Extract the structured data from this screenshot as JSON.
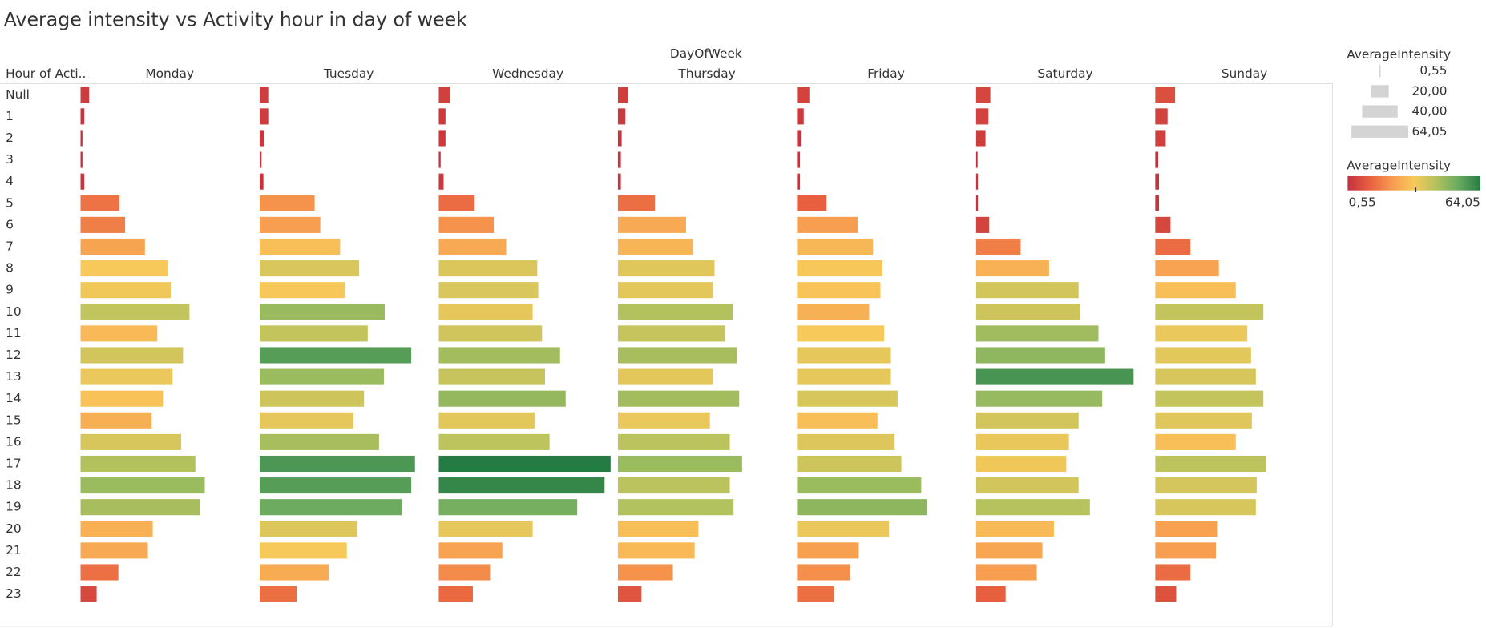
{
  "chart_data": {
    "type": "bar",
    "title": "Average intensity vs Activity hour in day of week",
    "column_header": "DayOfWeek",
    "row_header": "Hour of Acti..",
    "categories": [
      "Null",
      "1",
      "2",
      "3",
      "4",
      "5",
      "6",
      "7",
      "8",
      "9",
      "10",
      "11",
      "12",
      "13",
      "14",
      "15",
      "16",
      "17",
      "18",
      "19",
      "20",
      "21",
      "22",
      "23"
    ],
    "xlim": [
      0,
      65
    ],
    "series": [
      {
        "name": "Monday",
        "values": [
          3.2,
          1.4,
          0.7,
          0.7,
          1.4,
          14.5,
          16.6,
          24.0,
          32.5,
          33.6,
          40.6,
          28.6,
          38.2,
          34.3,
          30.7,
          26.5,
          37.5,
          42.8,
          46.3,
          44.5,
          26.9,
          25.1,
          14.1,
          6.0
        ]
      },
      {
        "name": "Tuesday",
        "values": [
          3.2,
          3.2,
          1.8,
          0.7,
          1.4,
          20.5,
          22.6,
          30.0,
          37.1,
          31.8,
          46.6,
          40.3,
          56.5,
          46.3,
          38.9,
          35.0,
          44.5,
          57.9,
          56.5,
          53.0,
          36.4,
          32.5,
          25.8,
          13.8
        ]
      },
      {
        "name": "Wednesday",
        "values": [
          4.2,
          2.5,
          2.5,
          0.7,
          1.8,
          13.4,
          20.5,
          25.1,
          36.7,
          37.1,
          35.0,
          38.5,
          45.2,
          39.6,
          47.3,
          35.7,
          41.3,
          64.05,
          61.8,
          51.6,
          35.0,
          23.7,
          19.1,
          12.7
        ]
      },
      {
        "name": "Thursday",
        "values": [
          3.9,
          2.8,
          1.4,
          1.1,
          1.1,
          13.8,
          25.4,
          27.9,
          36.0,
          35.3,
          42.8,
          39.9,
          44.5,
          35.3,
          45.2,
          34.3,
          41.7,
          46.3,
          41.7,
          43.1,
          30.0,
          28.6,
          20.5,
          8.8
        ]
      },
      {
        "name": "Friday",
        "values": [
          4.6,
          2.5,
          1.4,
          1.1,
          1.1,
          11.0,
          22.6,
          28.3,
          31.8,
          31.1,
          26.9,
          32.5,
          35.0,
          35.0,
          37.5,
          30.0,
          36.4,
          38.9,
          46.3,
          48.4,
          34.3,
          23.0,
          19.8,
          13.8
        ]
      },
      {
        "name": "Saturday",
        "values": [
          5.3,
          4.6,
          3.5,
          0.55,
          0.7,
          0.7,
          4.9,
          16.6,
          27.2,
          38.2,
          38.9,
          45.6,
          48.1,
          58.7,
          47.0,
          38.2,
          34.6,
          33.6,
          38.2,
          42.4,
          29.0,
          24.7,
          22.6,
          11.0
        ]
      },
      {
        "name": "Sunday",
        "values": [
          7.4,
          4.6,
          3.9,
          1.1,
          1.4,
          1.4,
          5.7,
          13.1,
          23.7,
          30.0,
          40.3,
          34.3,
          35.7,
          37.5,
          40.3,
          36.0,
          30.0,
          41.3,
          37.8,
          37.5,
          23.3,
          22.6,
          13.1,
          7.8
        ]
      }
    ],
    "size_legend": {
      "title": "AverageIntensity",
      "ticks": [
        {
          "value": 0.55,
          "label": "0,55"
        },
        {
          "value": 20,
          "label": "20,00"
        },
        {
          "value": 40,
          "label": "40,00"
        },
        {
          "value": 64.05,
          "label": "64,05"
        }
      ]
    },
    "color_legend": {
      "title": "AverageIntensity",
      "colors": [
        "#c4303e",
        "#e8603f",
        "#f79a4f",
        "#f8c95a",
        "#b3c25e",
        "#6aab60",
        "#257c43"
      ],
      "min": {
        "value": 0.55,
        "label": "0,55"
      },
      "max": {
        "value": 64.05,
        "label": "64,05"
      }
    }
  }
}
